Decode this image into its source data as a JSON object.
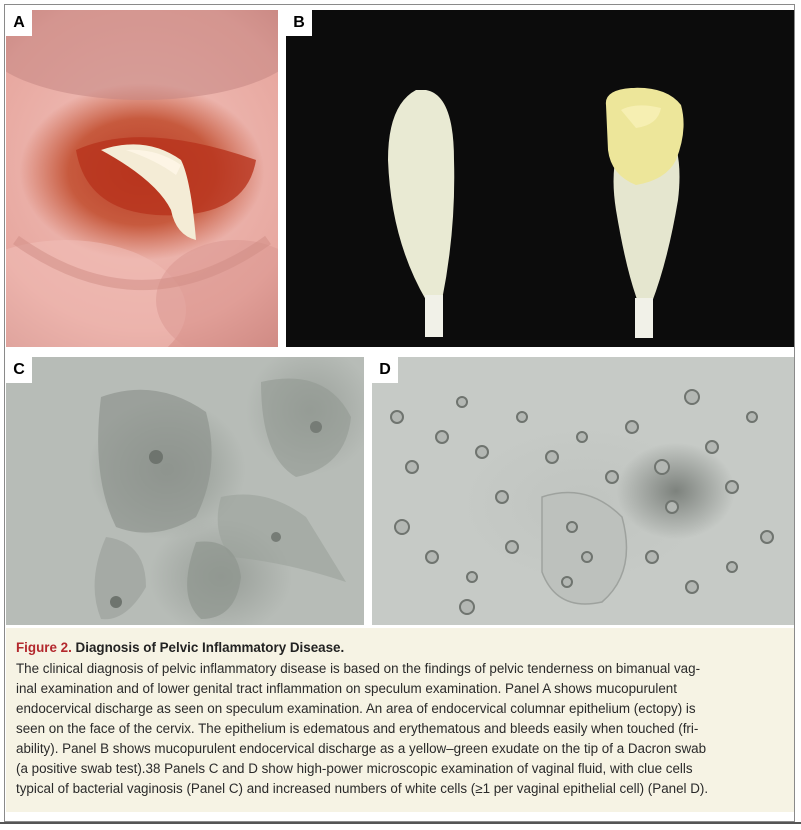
{
  "panels": {
    "a": {
      "label": "A"
    },
    "b": {
      "label": "B"
    },
    "c": {
      "label": "C"
    },
    "d": {
      "label": "D"
    }
  },
  "caption": {
    "figure_label": "Figure 2.",
    "figure_title": "Diagnosis of Pelvic Inflammatory Disease.",
    "lines": [
      "The clinical diagnosis of pelvic inflammatory disease is based on the findings of pelvic tenderness on bimanual vag-",
      "inal examination and of lower genital tract inflammation on speculum examination. Panel A shows mucopurulent",
      "endocervical discharge as seen on speculum examination. An area of endocervical columnar epithelium (ectopy) is",
      "seen on the face of the cervix. The epithelium is edematous and erythematous and bleeds easily when touched (fri-",
      "ability). Panel B shows mucopurulent endocervical discharge as a yellow–green exudate on the tip of a Dacron swab",
      "(a positive swab test).38 Panels C and D show high-power microscopic examination of vaginal fluid, with clue cells",
      "typical of bacterial vaginosis (Panel C) and increased numbers of white cells (≥1 per vaginal epithelial cell) (Panel D)."
    ]
  }
}
